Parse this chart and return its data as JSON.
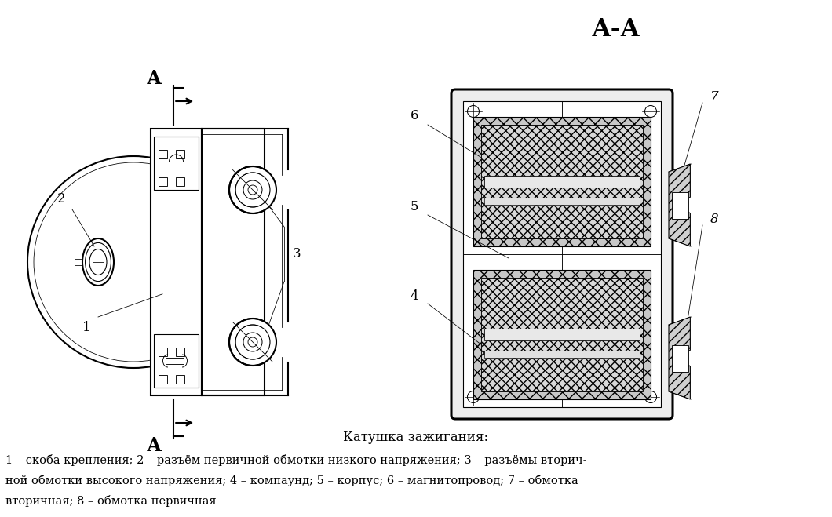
{
  "bg_color": "#ffffff",
  "line_color": "#000000",
  "title_AA": "А-А",
  "section_title": "Катушка зажигания:",
  "description_line1": "1 – скоба крепления; 2 – разъём первичной обмотки низкого напряжения; 3 – разъёмы вторич-",
  "description_line2": "ной обмотки высокого напряжения; 4 – компаунд; 5 – корпус; 6 – магнитопровод; 7 – обмотка",
  "description_line3": "вторичная; 8 – обмотка первичная",
  "label_A_top": "А",
  "label_A_bot": "А"
}
